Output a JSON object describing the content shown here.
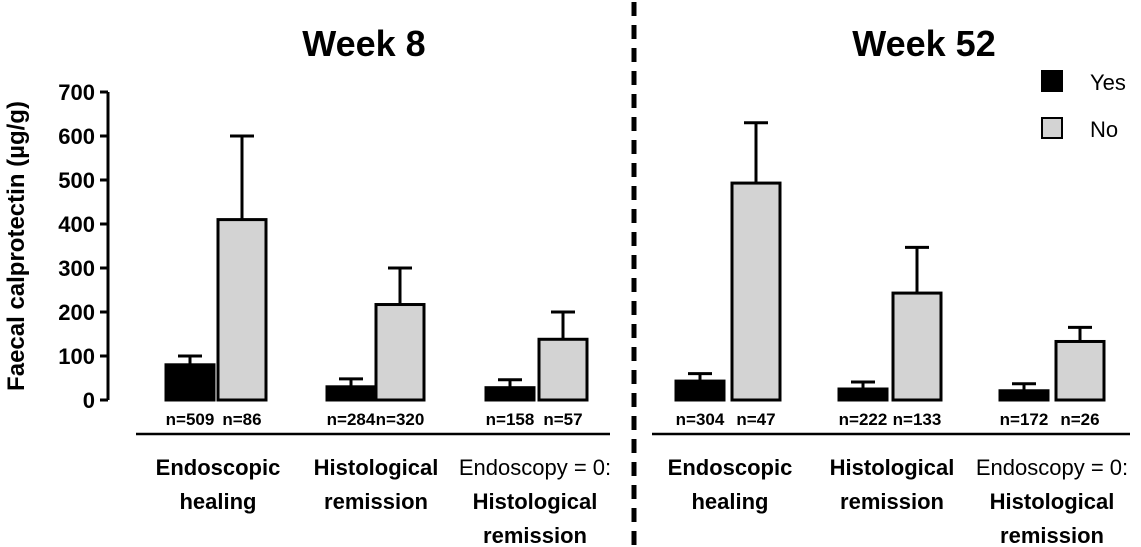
{
  "chart_data": {
    "type": "bar",
    "ylabel": "Faecal calprotectin (µg/g)",
    "ylim": [
      0,
      700
    ],
    "yticks": [
      "0",
      "100",
      "200",
      "300",
      "400",
      "500",
      "600",
      "700"
    ],
    "legend": {
      "placement": "top-right",
      "entries": [
        {
          "name": "Yes",
          "color": "#000000"
        },
        {
          "name": "No",
          "color": "#d3d3d3"
        }
      ]
    },
    "panels": [
      {
        "title": "Week 8",
        "groups": [
          {
            "label": [
              "Endoscopic",
              "healing"
            ],
            "bars": [
              {
                "series": "Yes",
                "value": 80,
                "error": 100,
                "n": "n=509"
              },
              {
                "series": "No",
                "value": 410,
                "error": 600,
                "n": "n=86"
              }
            ]
          },
          {
            "label": [
              "Histological",
              "remission"
            ],
            "bars": [
              {
                "series": "Yes",
                "value": 30,
                "error": 48,
                "n": "n=284"
              },
              {
                "series": "No",
                "value": 217,
                "error": 300,
                "n": "n=320"
              }
            ]
          },
          {
            "label": [
              "Endoscopy = 0:",
              "Histological",
              "remission"
            ],
            "bars": [
              {
                "series": "Yes",
                "value": 28,
                "error": 46,
                "n": "n=158"
              },
              {
                "series": "No",
                "value": 138,
                "error": 200,
                "n": "n=57"
              }
            ]
          }
        ]
      },
      {
        "title": "Week 52",
        "groups": [
          {
            "label": [
              "Endoscopic",
              "healing"
            ],
            "bars": [
              {
                "series": "Yes",
                "value": 43,
                "error": 60,
                "n": "n=304"
              },
              {
                "series": "No",
                "value": 493,
                "error": 630,
                "n": "n=47"
              }
            ]
          },
          {
            "label": [
              "Histological",
              "remission"
            ],
            "bars": [
              {
                "series": "Yes",
                "value": 25,
                "error": 41,
                "n": "n=222"
              },
              {
                "series": "No",
                "value": 243,
                "error": 347,
                "n": "n=133"
              }
            ]
          },
          {
            "label": [
              "Endoscopy = 0:",
              "Histological",
              "remission"
            ],
            "bars": [
              {
                "series": "Yes",
                "value": 21,
                "error": 37,
                "n": "n=172"
              },
              {
                "series": "No",
                "value": 133,
                "error": 165,
                "n": "n=26"
              }
            ]
          }
        ]
      }
    ]
  }
}
